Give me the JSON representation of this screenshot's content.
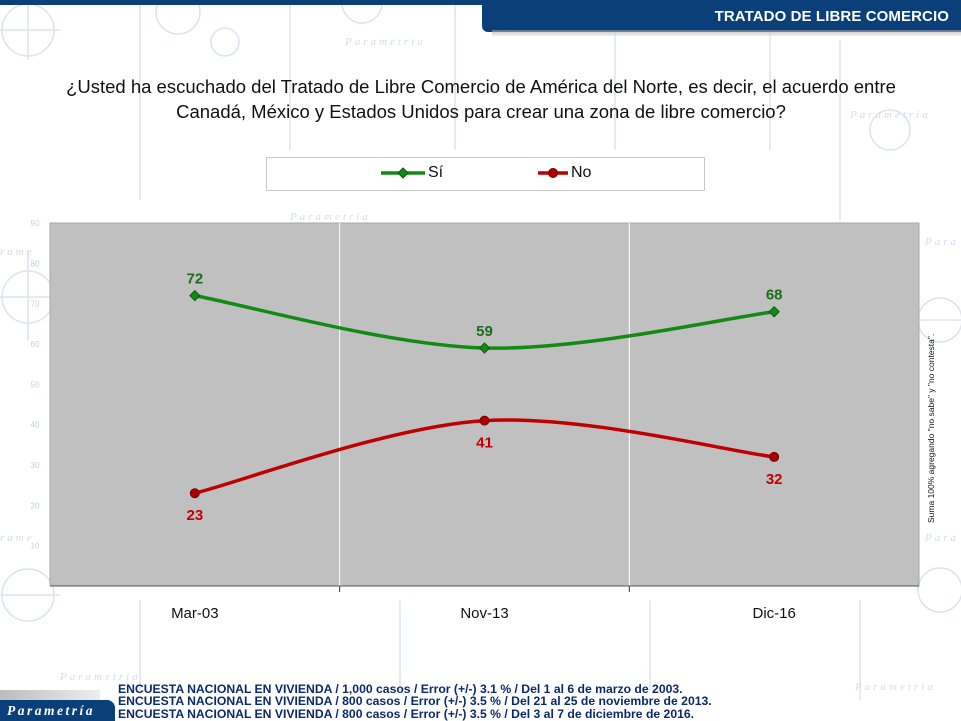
{
  "header": {
    "section_title": "TRATADO DE LIBRE COMERCIO"
  },
  "question": {
    "line1": "¿Usted ha escuchado del Tratado de Libre Comercio de América del Norte, es decir, el acuerdo entre",
    "line2": "Canadá, México y Estados Unidos para crear una zona de libre comercio?"
  },
  "side_note": "Suma 100% agregando \"no sabe\" y \"no contesta\".",
  "footer": {
    "lines": [
      "ENCUESTA NACIONAL EN VIVIENDA / 1,000 casos / Error (+/-) 3.1 % / Del 1 al 6 de marzo de 2003.",
      "ENCUESTA NACIONAL EN VIVIENDA / 800 casos / Error (+/-) 3.5 % / Del 21 al 25 de noviembre de 2013.",
      "ENCUESTA NACIONAL EN VIVIENDA / 800 casos / Error (+/-) 3.5 % / Del 3 al 7 de diciembre de 2016."
    ]
  },
  "brand": "Parametría",
  "colors": {
    "navy": "#0b3f7a",
    "plot_bg": "#c0c0c0",
    "si": "#138a13",
    "si_label": "#1a6e1a",
    "no": "#c00000",
    "no_label": "#c00000"
  },
  "chart_data": {
    "type": "line",
    "title": "",
    "xlabel": "",
    "ylabel": "",
    "categories": [
      "Mar-03",
      "Nov-13",
      "Dic-16"
    ],
    "ylim": [
      0,
      90
    ],
    "yticks": [
      10,
      20,
      30,
      40,
      50,
      60,
      70,
      80,
      90
    ],
    "grid": false,
    "smooth": true,
    "legend_position": "top",
    "series": [
      {
        "name": "Sí",
        "values": [
          72,
          59,
          68
        ],
        "marker": "diamond",
        "color": "#138a13"
      },
      {
        "name": "No",
        "values": [
          23,
          41,
          32
        ],
        "marker": "circle",
        "color": "#c00000"
      }
    ]
  }
}
